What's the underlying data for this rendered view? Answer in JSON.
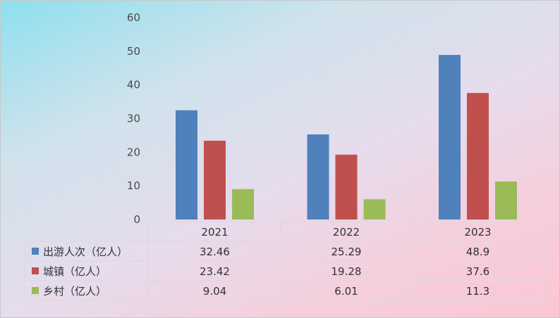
{
  "chart_data": {
    "type": "bar",
    "title": "",
    "xlabel": "",
    "ylabel": "",
    "categories": [
      "2021",
      "2022",
      "2023"
    ],
    "series": [
      {
        "name": "出游人次（亿人）",
        "values": [
          32.46,
          25.29,
          48.9
        ],
        "color": "#4f81bd"
      },
      {
        "name": "城镇（亿人）",
        "values": [
          23.42,
          19.28,
          37.6
        ],
        "color": "#c0504d"
      },
      {
        "name": "乡村（亿人）",
        "values": [
          9.04,
          6.01,
          11.3
        ],
        "color": "#9bbb59"
      }
    ],
    "ylim": [
      0,
      60
    ],
    "yticks": [
      0,
      10,
      20,
      30,
      40,
      50,
      60
    ],
    "grid": false,
    "legend": "data-table",
    "data_table": [
      [
        "32.46",
        "25.29",
        "48.9"
      ],
      [
        "23.42",
        "19.28",
        "37.6"
      ],
      [
        "9.04",
        "6.01",
        "11.3"
      ]
    ]
  }
}
